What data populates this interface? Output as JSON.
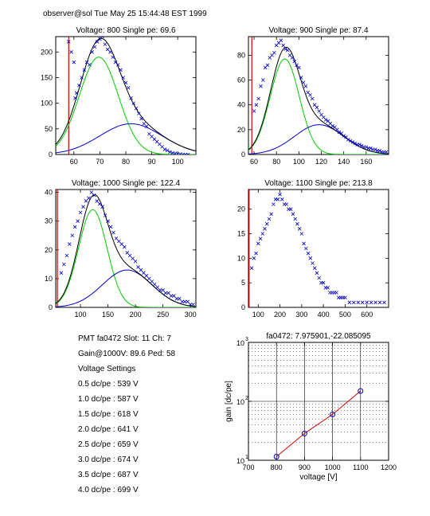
{
  "header": {
    "text": "observer@sol  Tue May 25 15:44:48 EST 1999"
  },
  "info": {
    "lines": [
      "PMT fa0472 Slot: 11 Ch: 7",
      "Gain@1000V: 89.6 Ped: 58",
      "Voltage Settings",
      "0.5 dc/pe : 539 V",
      "1.0 dc/pe : 587 V",
      "1.5 dc/pe : 618 V",
      "2.0 dc/pe : 641 V",
      "2.5 dc/pe : 659 V",
      "3.0 dc/pe : 674 V",
      "3.5 dc/pe : 687 V",
      "4.0 dc/pe : 699 V"
    ]
  },
  "colors": {
    "data": "#0000cc",
    "total": "#000000",
    "single_pe": "#00cc00",
    "two_pe": "#0000cc",
    "marker": "#cc0000",
    "fit": "#cc0000"
  },
  "chart_data": [
    {
      "type": "scatter",
      "title": "Voltage: 800 Single pe: 69.6",
      "xlim": [
        53,
        107
      ],
      "ylim": [
        0,
        230
      ],
      "xticks": [
        60,
        70,
        80,
        90,
        100
      ],
      "yticks": [
        0,
        50,
        100,
        150,
        200
      ],
      "pedestal": 58,
      "single_pe": {
        "mu": 69.6,
        "sigma": 7.5,
        "amp": 190
      },
      "two_pe": {
        "mu": 82,
        "sigma": 12,
        "amp": 60
      },
      "points": [
        [
          58,
          220
        ],
        [
          59,
          200
        ],
        [
          60,
          180
        ],
        [
          60.5,
          110
        ],
        [
          61,
          120
        ],
        [
          62,
          135
        ],
        [
          63,
          150
        ],
        [
          64,
          165
        ],
        [
          65,
          180
        ],
        [
          66,
          175
        ],
        [
          67,
          200
        ],
        [
          68,
          210
        ],
        [
          69,
          220
        ],
        [
          70,
          225
        ],
        [
          71,
          230
        ],
        [
          72,
          215
        ],
        [
          73,
          205
        ],
        [
          74,
          200
        ],
        [
          75,
          190
        ],
        [
          76,
          180
        ],
        [
          77,
          175
        ],
        [
          78,
          165
        ],
        [
          79,
          150
        ],
        [
          80,
          140
        ],
        [
          81,
          130
        ],
        [
          82,
          110
        ],
        [
          83,
          100
        ],
        [
          84,
          90
        ],
        [
          85,
          80
        ],
        [
          86,
          70
        ],
        [
          87,
          60
        ],
        [
          88,
          55
        ],
        [
          89,
          40
        ],
        [
          90,
          35
        ],
        [
          91,
          30
        ],
        [
          92,
          25
        ],
        [
          93,
          20
        ],
        [
          94,
          15
        ],
        [
          95,
          10
        ],
        [
          96,
          8
        ],
        [
          97,
          5
        ],
        [
          98,
          3
        ],
        [
          99,
          2
        ],
        [
          100,
          1
        ],
        [
          101,
          1
        ],
        [
          102,
          0
        ],
        [
          103,
          0
        ],
        [
          104,
          0
        ]
      ]
    },
    {
      "type": "scatter",
      "title": "Voltage: 900 Single pe: 87.4",
      "xlim": [
        55,
        180
      ],
      "ylim": [
        0,
        95
      ],
      "xticks": [
        60,
        80,
        100,
        120,
        140,
        160
      ],
      "yticks": [
        0,
        20,
        40,
        60,
        80
      ],
      "pedestal": 58,
      "single_pe": {
        "mu": 87.4,
        "sigma": 13,
        "amp": 77
      },
      "two_pe": {
        "mu": 118,
        "sigma": 22,
        "amp": 24
      },
      "points": [
        [
          60,
          35
        ],
        [
          62,
          40
        ],
        [
          64,
          45
        ],
        [
          66,
          55
        ],
        [
          68,
          60
        ],
        [
          70,
          70
        ],
        [
          72,
          72
        ],
        [
          74,
          78
        ],
        [
          76,
          80
        ],
        [
          78,
          82
        ],
        [
          80,
          88
        ],
        [
          82,
          90
        ],
        [
          84,
          92
        ],
        [
          86,
          88
        ],
        [
          88,
          85
        ],
        [
          90,
          84
        ],
        [
          92,
          80
        ],
        [
          94,
          78
        ],
        [
          96,
          75
        ],
        [
          98,
          72
        ],
        [
          100,
          70
        ],
        [
          102,
          62
        ],
        [
          104,
          58
        ],
        [
          106,
          55
        ],
        [
          108,
          50
        ],
        [
          110,
          48
        ],
        [
          112,
          45
        ],
        [
          114,
          40
        ],
        [
          116,
          38
        ],
        [
          118,
          35
        ],
        [
          120,
          32
        ],
        [
          122,
          30
        ],
        [
          124,
          28
        ],
        [
          126,
          27
        ],
        [
          128,
          25
        ],
        [
          130,
          23
        ],
        [
          132,
          22
        ],
        [
          134,
          20
        ],
        [
          136,
          18
        ],
        [
          138,
          17
        ],
        [
          140,
          15
        ],
        [
          142,
          14
        ],
        [
          144,
          12
        ],
        [
          146,
          11
        ],
        [
          148,
          10
        ],
        [
          150,
          9
        ],
        [
          152,
          8
        ],
        [
          154,
          8
        ],
        [
          156,
          7
        ],
        [
          158,
          6
        ],
        [
          160,
          6
        ],
        [
          162,
          5
        ],
        [
          164,
          5
        ],
        [
          166,
          4
        ],
        [
          168,
          4
        ],
        [
          170,
          3
        ],
        [
          172,
          3
        ],
        [
          174,
          2
        ],
        [
          176,
          2
        ],
        [
          178,
          2
        ]
      ]
    },
    {
      "type": "scatter",
      "title": "Voltage: 1000 Single pe: 122.4",
      "xlim": [
        55,
        310
      ],
      "ylim": [
        0,
        41
      ],
      "xticks": [
        100,
        150,
        200,
        250,
        300
      ],
      "yticks": [
        0,
        10,
        20,
        30,
        40
      ],
      "pedestal": 58,
      "single_pe": {
        "mu": 122.4,
        "sigma": 26,
        "amp": 34
      },
      "two_pe": {
        "mu": 185,
        "sigma": 45,
        "amp": 13
      },
      "points": [
        [
          65,
          12
        ],
        [
          70,
          15
        ],
        [
          75,
          18
        ],
        [
          80,
          22
        ],
        [
          85,
          25
        ],
        [
          90,
          28
        ],
        [
          95,
          30
        ],
        [
          100,
          33
        ],
        [
          105,
          35
        ],
        [
          110,
          37
        ],
        [
          115,
          38
        ],
        [
          120,
          40
        ],
        [
          125,
          39
        ],
        [
          130,
          37
        ],
        [
          135,
          36
        ],
        [
          140,
          35
        ],
        [
          145,
          32
        ],
        [
          150,
          30
        ],
        [
          155,
          28
        ],
        [
          160,
          26
        ],
        [
          165,
          24
        ],
        [
          170,
          23
        ],
        [
          175,
          22
        ],
        [
          180,
          21
        ],
        [
          185,
          19
        ],
        [
          190,
          18
        ],
        [
          195,
          17
        ],
        [
          200,
          16
        ],
        [
          205,
          14
        ],
        [
          210,
          13
        ],
        [
          215,
          12
        ],
        [
          220,
          11
        ],
        [
          225,
          10
        ],
        [
          230,
          9
        ],
        [
          235,
          8
        ],
        [
          240,
          7
        ],
        [
          245,
          6
        ],
        [
          250,
          6
        ],
        [
          255,
          5
        ],
        [
          260,
          5
        ],
        [
          265,
          4
        ],
        [
          270,
          4
        ],
        [
          275,
          3
        ],
        [
          280,
          3
        ],
        [
          285,
          2
        ],
        [
          290,
          2
        ],
        [
          295,
          2
        ],
        [
          300,
          1
        ],
        [
          305,
          1
        ]
      ]
    },
    {
      "type": "scatter",
      "title": "Voltage: 1100 Single pe: 213.8",
      "xlim": [
        55,
        700
      ],
      "ylim": [
        0,
        24
      ],
      "xticks": [
        100,
        200,
        300,
        400,
        500,
        600
      ],
      "yticks": [
        0,
        5,
        10,
        15,
        20
      ],
      "pedestal": 58,
      "points": [
        [
          70,
          8
        ],
        [
          80,
          10
        ],
        [
          90,
          11
        ],
        [
          100,
          13
        ],
        [
          110,
          14
        ],
        [
          120,
          15
        ],
        [
          130,
          16
        ],
        [
          140,
          17
        ],
        [
          150,
          18
        ],
        [
          160,
          19
        ],
        [
          170,
          21
        ],
        [
          180,
          22
        ],
        [
          190,
          22
        ],
        [
          200,
          23
        ],
        [
          210,
          22
        ],
        [
          220,
          21
        ],
        [
          230,
          21
        ],
        [
          240,
          20
        ],
        [
          250,
          20
        ],
        [
          260,
          19
        ],
        [
          270,
          18
        ],
        [
          280,
          17
        ],
        [
          290,
          16
        ],
        [
          300,
          15
        ],
        [
          310,
          13
        ],
        [
          320,
          12
        ],
        [
          330,
          11
        ],
        [
          340,
          10
        ],
        [
          350,
          9
        ],
        [
          360,
          8
        ],
        [
          370,
          7
        ],
        [
          380,
          6
        ],
        [
          390,
          5
        ],
        [
          400,
          5
        ],
        [
          410,
          4
        ],
        [
          420,
          4
        ],
        [
          430,
          3
        ],
        [
          440,
          3
        ],
        [
          450,
          3
        ],
        [
          460,
          3
        ],
        [
          470,
          2
        ],
        [
          480,
          2
        ],
        [
          490,
          2
        ],
        [
          500,
          2
        ],
        [
          520,
          1
        ],
        [
          540,
          1
        ],
        [
          560,
          1
        ],
        [
          580,
          1
        ],
        [
          600,
          1
        ],
        [
          620,
          1
        ],
        [
          640,
          1
        ],
        [
          660,
          1
        ],
        [
          680,
          1
        ]
      ]
    },
    {
      "type": "line",
      "title": "fa0472: 7.975901,-22.085095",
      "xlabel": "voltage [V]",
      "ylabel": "gain [dc/pe]",
      "xlim": [
        700,
        1200
      ],
      "ylim": [
        10,
        1000
      ],
      "yscale": "log",
      "xticks": [
        700,
        800,
        900,
        1000,
        1100,
        1200
      ],
      "yticks": [
        10,
        100,
        1000
      ],
      "ytick_labels": [
        "10",
        "10",
        "10"
      ],
      "ytick_exponents": [
        "1",
        "2",
        "3"
      ],
      "x": [
        800,
        900,
        1000,
        1100
      ],
      "y": [
        11.5,
        28.5,
        60,
        150
      ],
      "grid": true
    }
  ]
}
